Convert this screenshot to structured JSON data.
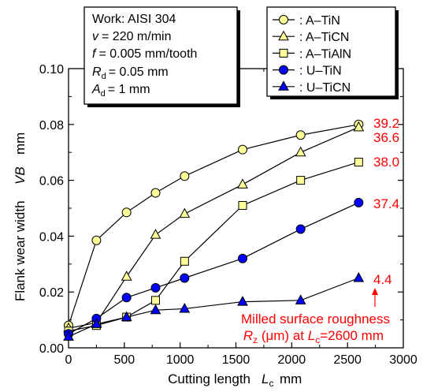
{
  "chart_data": {
    "type": "line",
    "xlabel_text": "Cutting length",
    "xlabel_sym": "L",
    "xlabel_sub": "c",
    "xlabel_unit": "mm",
    "ylabel_text": "Flank wear width",
    "ylabel_sym": "VB",
    "ylabel_unit": "mm",
    "xlim": [
      0,
      3000
    ],
    "ylim": [
      0,
      0.1
    ],
    "xticks": [
      "0",
      "500",
      "1000",
      "1500",
      "2000",
      "2500",
      "3000"
    ],
    "yticks": [
      "0.00",
      "0.02",
      "0.04",
      "0.06",
      "0.08",
      "0.10"
    ],
    "x": [
      0,
      250,
      520,
      780,
      1040,
      1560,
      2080,
      2600
    ],
    "series": [
      {
        "name": "A–TiN",
        "marker": "circle",
        "fill": "#ffff99",
        "values": [
          0.008,
          0.0385,
          0.0485,
          0.0555,
          0.0615,
          0.071,
          0.0762,
          0.08
        ]
      },
      {
        "name": "A–TiCN",
        "marker": "triangle",
        "fill": "#ffff99",
        "values": [
          0.007,
          0.009,
          0.0255,
          0.0405,
          0.048,
          0.0585,
          0.07,
          0.079
        ]
      },
      {
        "name": "A–TiAlN",
        "marker": "square",
        "fill": "#ffff99",
        "values": [
          0.006,
          0.008,
          0.011,
          0.017,
          0.031,
          0.051,
          0.06,
          0.0665
        ]
      },
      {
        "name": "U–TiN",
        "marker": "circle",
        "fill": "#0000ff",
        "values": [
          0.005,
          0.0105,
          0.018,
          0.0215,
          0.025,
          0.032,
          0.0425,
          0.052
        ]
      },
      {
        "name": "U–TiCN",
        "marker": "triangle",
        "fill": "#0000ff",
        "values": [
          0.004,
          0.0085,
          0.011,
          0.0135,
          0.014,
          0.0165,
          0.017,
          0.025
        ]
      }
    ],
    "end_labels": [
      "39.2",
      "36.6",
      "38.0",
      "37.4",
      "4.4"
    ],
    "conditions": {
      "work": "Work: AISI 304",
      "v_sym": "v",
      "v_val": "= 220 m/min",
      "f_sym": "f",
      "f_val": "= 0.005 mm/tooth",
      "R_sym": "R",
      "R_sub": "d",
      "R_val": "= 0.05 mm",
      "A_sym": "A",
      "A_sub": "d",
      "A_val": "= 1 mm"
    },
    "annotation": {
      "line1": "Milled surface roughness",
      "rz_sym": "R",
      "rz_sub": "z",
      "rz_mid": " (μm) at ",
      "lc_sym": "L",
      "lc_sub": "c",
      "lc_val": "=2600 mm"
    },
    "legend_prefix": ": ",
    "grid": false,
    "legend_position": "top-right"
  }
}
